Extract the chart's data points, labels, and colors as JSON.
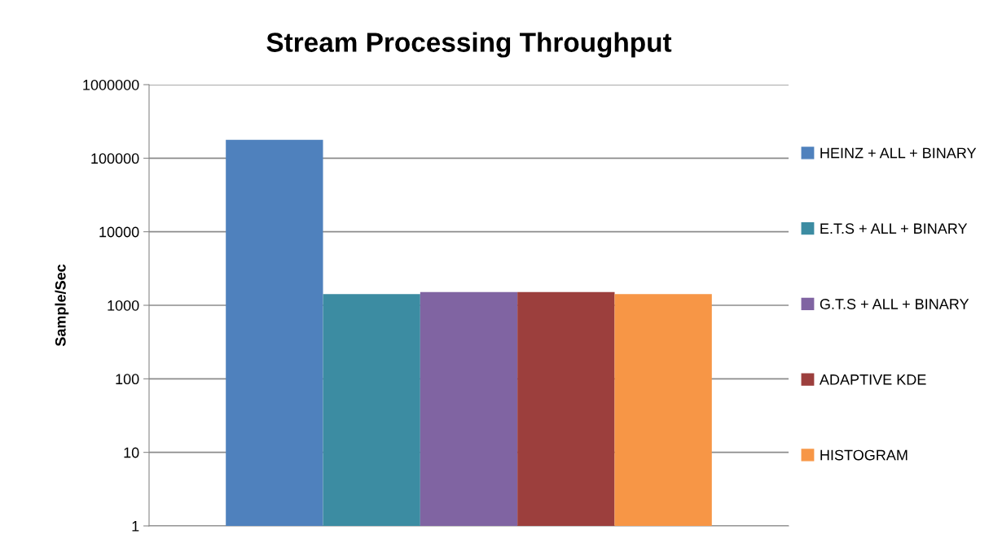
{
  "chart_data": {
    "type": "bar",
    "title": "Stream Processing Throughput",
    "ylabel": "Sample/Sec",
    "categories": [
      null
    ],
    "series": [
      {
        "name": "HEINZ + ALL + BINARY",
        "color": "#4f81bd",
        "values": [
          178000
        ]
      },
      {
        "name": "E.T.S + ALL + BINARY",
        "color": "#3c8ca2",
        "values": [
          1420
        ]
      },
      {
        "name": "G.T.S + ALL + BINARY",
        "color": "#8064a2",
        "values": [
          1510
        ]
      },
      {
        "name": "ADAPTIVE KDE",
        "color": "#9c3f3d",
        "values": [
          1510
        ]
      },
      {
        "name": "HISTOGRAM",
        "color": "#f79646",
        "values": [
          1420
        ]
      }
    ],
    "log": "y",
    "ylim": [
      1,
      1000000
    ],
    "yticks": [
      1,
      10,
      100,
      1000,
      10000,
      100000,
      1000000
    ],
    "grid": "y",
    "legend": "right"
  }
}
